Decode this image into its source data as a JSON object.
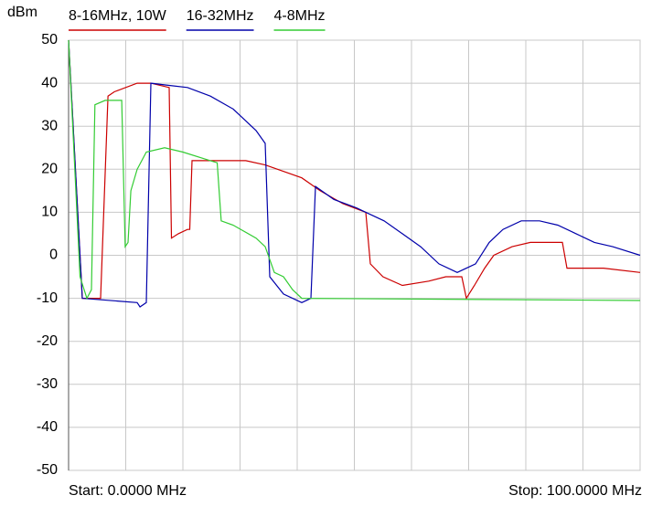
{
  "chart_data": {
    "type": "line",
    "y_label": "dBm",
    "xlim": [
      0,
      100
    ],
    "xticks": [
      {
        "value": 0,
        "label": "Start: 0.0000 MHz"
      },
      {
        "value": 100,
        "label": "Stop: 100.0000 MHz"
      }
    ],
    "xgrid": [
      0,
      10,
      20,
      30,
      40,
      50,
      60,
      70,
      80,
      90,
      100
    ],
    "ylim": [
      -50,
      50
    ],
    "yticks": [
      -50,
      -40,
      -30,
      -20,
      -10,
      0,
      10,
      20,
      30,
      40,
      50
    ],
    "grid": true,
    "series": [
      {
        "name": "8-16MHz, 10W",
        "color": "#cc0000",
        "x": [
          0,
          2.4,
          5.6,
          6.9,
          8,
          12,
          14.4,
          17.6,
          18,
          19.2,
          20.8,
          21.2,
          21.6,
          31,
          34.4,
          40.8,
          44,
          48,
          52,
          52.8,
          55,
          58.4,
          63,
          66,
          68.8,
          69.6,
          71,
          72.8,
          74.4,
          77.6,
          80.8,
          86.4,
          87.2,
          90.4,
          93.6,
          100
        ],
        "values": [
          50,
          -10,
          -10,
          37,
          38,
          40,
          40,
          39,
          4,
          5,
          6,
          6,
          22,
          22,
          21,
          18,
          15,
          12,
          10,
          -2,
          -5,
          -7,
          -6,
          -5,
          -5,
          -10,
          -7,
          -3,
          0,
          2,
          3,
          3,
          -3,
          -3,
          -3,
          -4
        ]
      },
      {
        "name": "16-32MHz",
        "color": "#0000aa",
        "x": [
          0,
          2.4,
          12,
          12.5,
          13.6,
          14.4,
          17.6,
          20.8,
          24.8,
          28.8,
          32.8,
          34.4,
          35.2,
          37.6,
          40.8,
          42.4,
          43.2,
          46.4,
          50.4,
          52,
          55.2,
          58.4,
          61.6,
          64.8,
          68,
          71.2,
          73.6,
          76,
          79.2,
          82.4,
          85.6,
          88.8,
          92,
          95.2,
          100
        ],
        "values": [
          50,
          -10,
          -11,
          -12,
          -11,
          40,
          39.5,
          39,
          37,
          34,
          29,
          26,
          -5,
          -9,
          -11,
          -10,
          16,
          13,
          11,
          10,
          8,
          5,
          2,
          -2,
          -4,
          -2,
          3,
          6,
          8,
          8,
          7,
          5,
          3,
          2,
          0
        ]
      },
      {
        "name": "4-8MHz",
        "color": "#33cc33",
        "x": [
          0,
          2,
          3.2,
          4,
          4.6,
          6.4,
          9.3,
          9.9,
          10.4,
          10.9,
          12,
          13.6,
          16.8,
          20,
          24.8,
          26,
          26.7,
          28.8,
          32.8,
          34.4,
          36,
          37.6,
          39.2,
          40.8,
          100
        ],
        "values": [
          50,
          -5,
          -10,
          -8,
          35,
          36,
          36,
          2,
          3,
          15,
          20,
          24,
          25,
          24,
          22,
          21.5,
          8,
          7,
          4,
          2,
          -4,
          -5,
          -8,
          -10,
          -10.5
        ]
      }
    ]
  }
}
